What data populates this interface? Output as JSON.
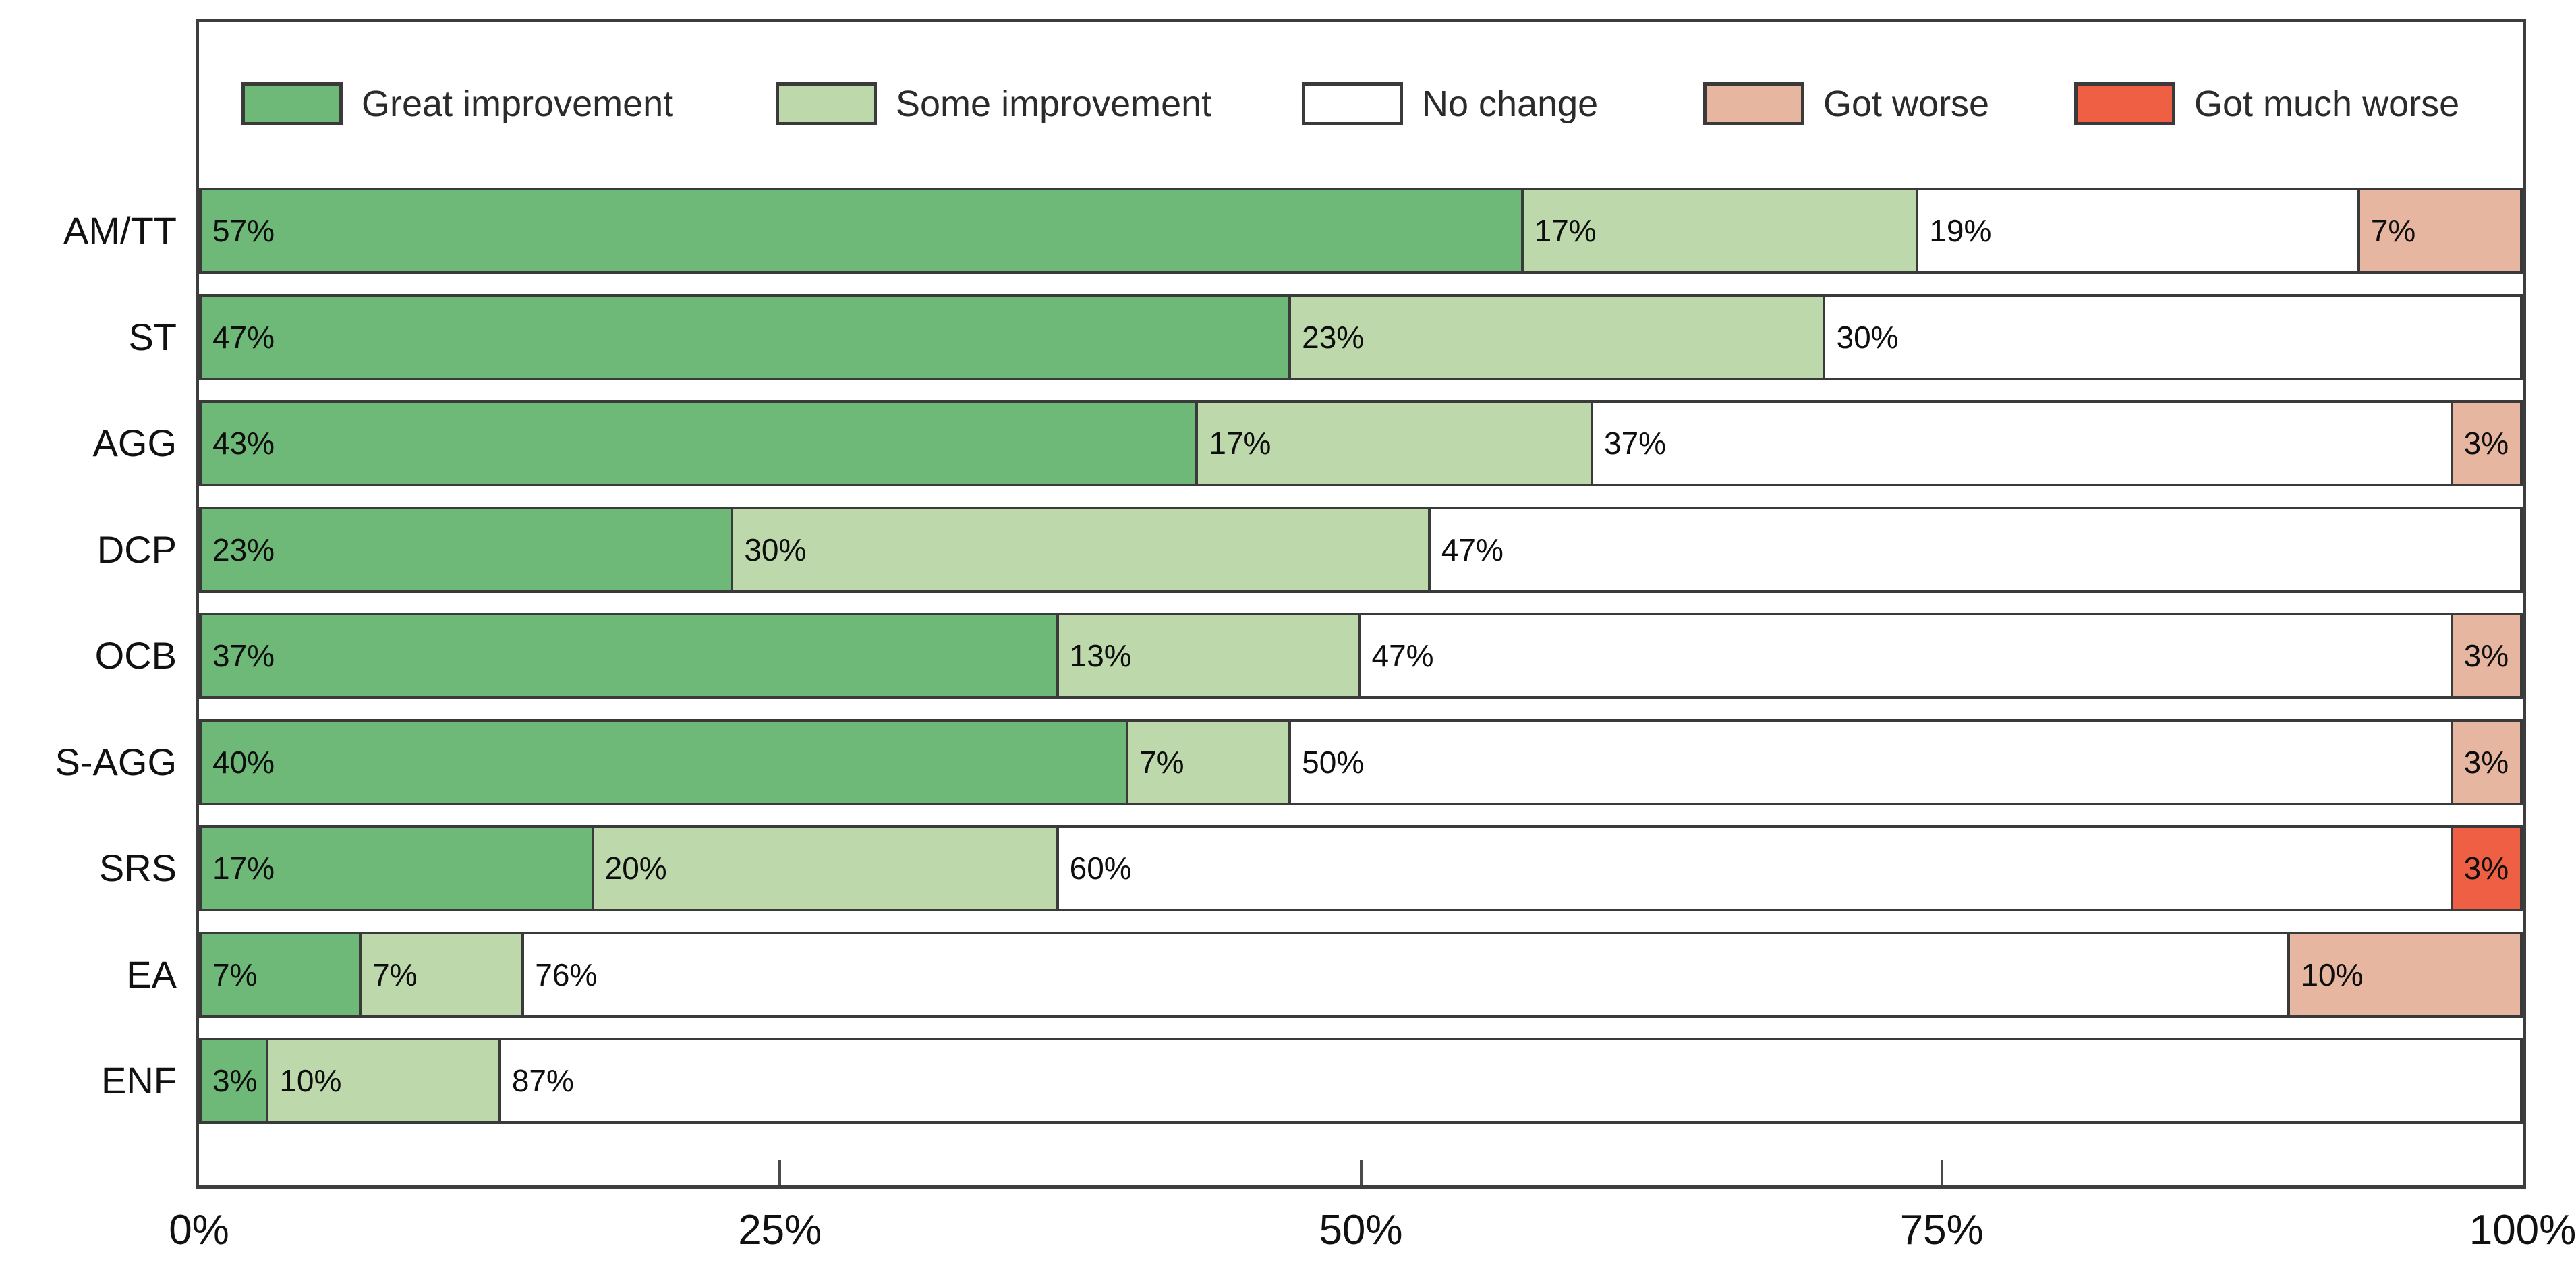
{
  "legend": [
    {
      "label": "Great improvement",
      "color": "#6eb878"
    },
    {
      "label": "Some improvement",
      "color": "#bdd9ac"
    },
    {
      "label": "No change",
      "color": "#ffffff"
    },
    {
      "label": "Got worse",
      "color": "#e7b6a1"
    },
    {
      "label": "Got much worse",
      "color": "#ee5f43"
    }
  ],
  "chart_data": {
    "type": "bar",
    "orientation": "horizontal",
    "stacked": true,
    "title": "",
    "xlabel": "",
    "ylabel": "",
    "categories": [
      "AM/TT",
      "ST",
      "AGG",
      "DCP",
      "OCB",
      "S-AGG",
      "SRS",
      "EA",
      "ENF"
    ],
    "series": [
      {
        "name": "Great improvement",
        "color": "#6eb878",
        "values": [
          57,
          47,
          43,
          23,
          37,
          40,
          17,
          7,
          3
        ]
      },
      {
        "name": "Some improvement",
        "color": "#bdd9ac",
        "values": [
          17,
          23,
          17,
          30,
          13,
          7,
          20,
          7,
          10
        ]
      },
      {
        "name": "No change",
        "color": "#ffffff",
        "values": [
          19,
          30,
          37,
          47,
          47,
          50,
          60,
          76,
          87
        ]
      },
      {
        "name": "Got worse",
        "color": "#e7b6a1",
        "values": [
          7,
          0,
          3,
          0,
          3,
          3,
          0,
          10,
          0
        ]
      },
      {
        "name": "Got much worse",
        "color": "#ee5f43",
        "values": [
          0,
          0,
          0,
          0,
          0,
          0,
          3,
          0,
          0
        ]
      }
    ],
    "data_label_suffix": "%",
    "x_ticks": [
      {
        "label": "0%",
        "value": 0
      },
      {
        "label": "25%",
        "value": 25
      },
      {
        "label": "50%",
        "value": 50
      },
      {
        "label": "75%",
        "value": 75
      },
      {
        "label": "100%",
        "value": 100
      }
    ],
    "xlim": [
      0,
      100
    ],
    "grid": false,
    "legend_position": "top-inside"
  }
}
